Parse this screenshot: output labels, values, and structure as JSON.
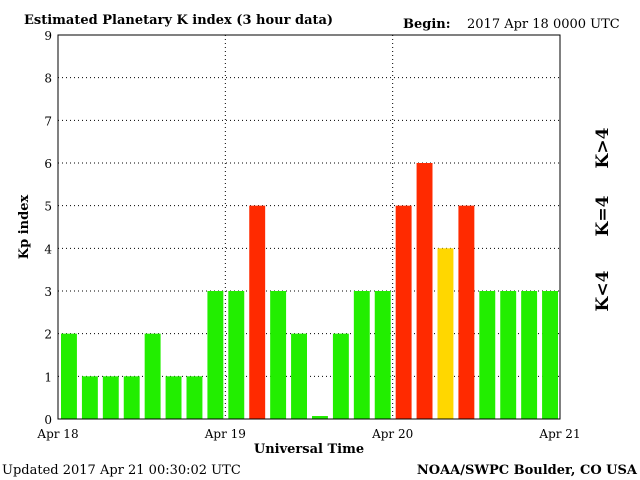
{
  "header": {
    "title": "Estimated Planetary K index (3 hour data)",
    "begin_label": "Begin:",
    "begin_value": "2017 Apr 18 0000 UTC"
  },
  "footer": {
    "updated": "Updated 2017 Apr 21 00:30:02 UTC",
    "credit": "NOAA/SWPC Boulder, CO USA"
  },
  "legend": {
    "high": {
      "label": "K>4",
      "color": "#ff2a00"
    },
    "equal": {
      "label": "K=4",
      "color": "#ffd700"
    },
    "low": {
      "label": "K<4",
      "color": "#22ee00"
    }
  },
  "chart_data": {
    "type": "bar",
    "title": "Estimated Planetary K index (3 hour data)",
    "xlabel": "Universal Time",
    "ylabel": "Kp index",
    "ylim": [
      0,
      9
    ],
    "y_ticks": [
      0,
      1,
      2,
      3,
      4,
      5,
      6,
      7,
      8,
      9
    ],
    "x_tick_labels": [
      "Apr 18",
      "Apr 19",
      "Apr 20",
      "Apr 21"
    ],
    "bin_hours": 3,
    "values": [
      2,
      1,
      1,
      1,
      2,
      1,
      1,
      3,
      3,
      5,
      3,
      2,
      0.07,
      2,
      3,
      3,
      5,
      6,
      4,
      5,
      3,
      3,
      3,
      3
    ],
    "colors": {
      "below_4": "#22ee00",
      "equal_4": "#ffd700",
      "above_4": "#ff2a00"
    },
    "grid": true
  }
}
